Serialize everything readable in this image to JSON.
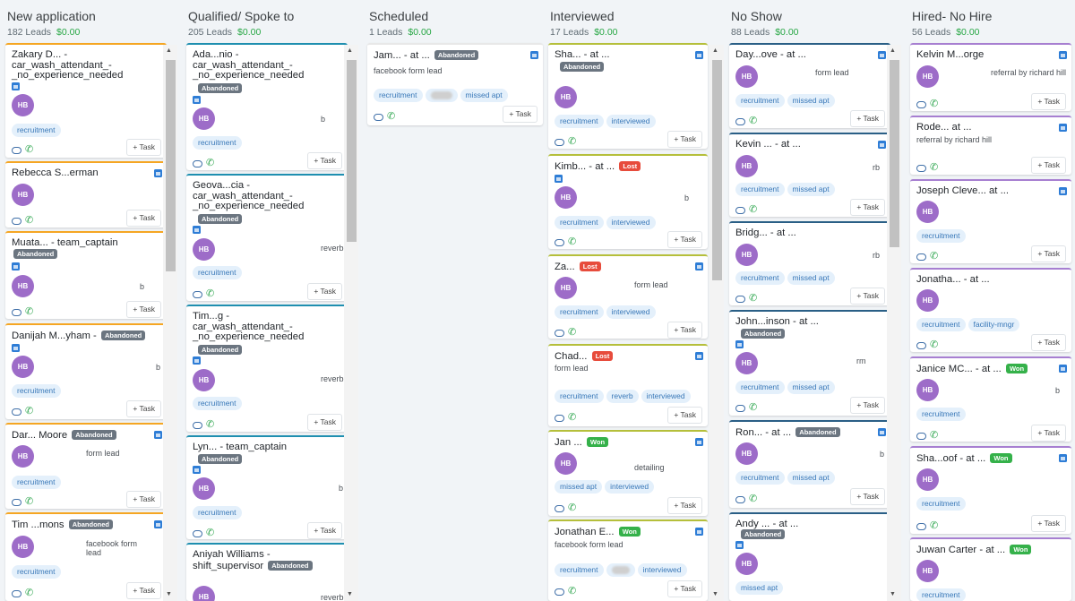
{
  "columns": [
    {
      "title": "New application",
      "leads": "182 Leads",
      "amount": "$0.00"
    },
    {
      "title": "Qualified/ Spoke to",
      "leads": "205 Leads",
      "amount": "$0.00"
    },
    {
      "title": "Scheduled",
      "leads": "1 Leads",
      "amount": "$0.00"
    },
    {
      "title": "Interviewed",
      "leads": "17 Leads",
      "amount": "$0.00"
    },
    {
      "title": "No Show",
      "leads": "88 Leads",
      "amount": "$0.00"
    },
    {
      "title": "Hired- No Hire",
      "leads": "56 Leads",
      "amount": "$0.00"
    }
  ],
  "avatar_initials": "HB",
  "task_label": "+ Task",
  "badges": {
    "abandoned": "Abandoned",
    "lost": "Lost",
    "won": "Won"
  },
  "sources": {
    "facebook_form": "facebook form lead",
    "form_lead": "form lead",
    "reverb": "reverb",
    "referral": "referral by richard hill",
    "detailing": "detailing",
    "b": "b",
    "rb": "rb",
    "rm": "rm"
  },
  "tags": {
    "recruitment": "recruitment",
    "missed_apt": "missed apt",
    "interviewed": "interviewed",
    "reverb": "reverb",
    "facility": "facility-mngr"
  },
  "cards": {
    "c0_0": "Zakary D... - car_wash_attendant_-_no_experience_needed",
    "c0_1": "Rebecca S...erman",
    "c0_2": "Muata... - team_captain",
    "c0_3": "Danijah M...yham -",
    "c0_4": "Dar... Moore",
    "c0_5": "Tim ...mons",
    "c1_0": "Ada...nio - car_wash_attendant_-_no_experience_needed",
    "c1_1": "Geova...cia - car_wash_attendant_-_no_experience_needed",
    "c1_2": "Tim...g - car_wash_attendant_-_no_experience_needed",
    "c1_3": "Lyn... - team_captain",
    "c1_4": "Aniyah Williams - shift_supervisor",
    "c2_0": "Jam... - at ...",
    "c3_0": "Sha... - at ...",
    "c3_1": "Kimb... - at ...",
    "c3_2": "Za...",
    "c3_3": "Chad...",
    "c3_4": "Jan ...",
    "c3_5": "Jonathan E...",
    "c4_0": "Day...ove - at ...",
    "c4_1": "Kevin ... - at ...",
    "c4_2": "Bridg... - at ...",
    "c4_3": "John...inson - at ...",
    "c4_4": "Ron... - at ...",
    "c4_5": "Andy ... - at ...",
    "c5_0": "Kelvin M...orge",
    "c5_1": "Rode... at ...",
    "c5_2": "Joseph Cleve... at ...",
    "c5_3": "Jonatha... - at ...",
    "c5_4": "Janice MC... - at ...",
    "c5_5": "Sha...oof - at ...",
    "c5_6": "Juwan Carter - at ..."
  }
}
